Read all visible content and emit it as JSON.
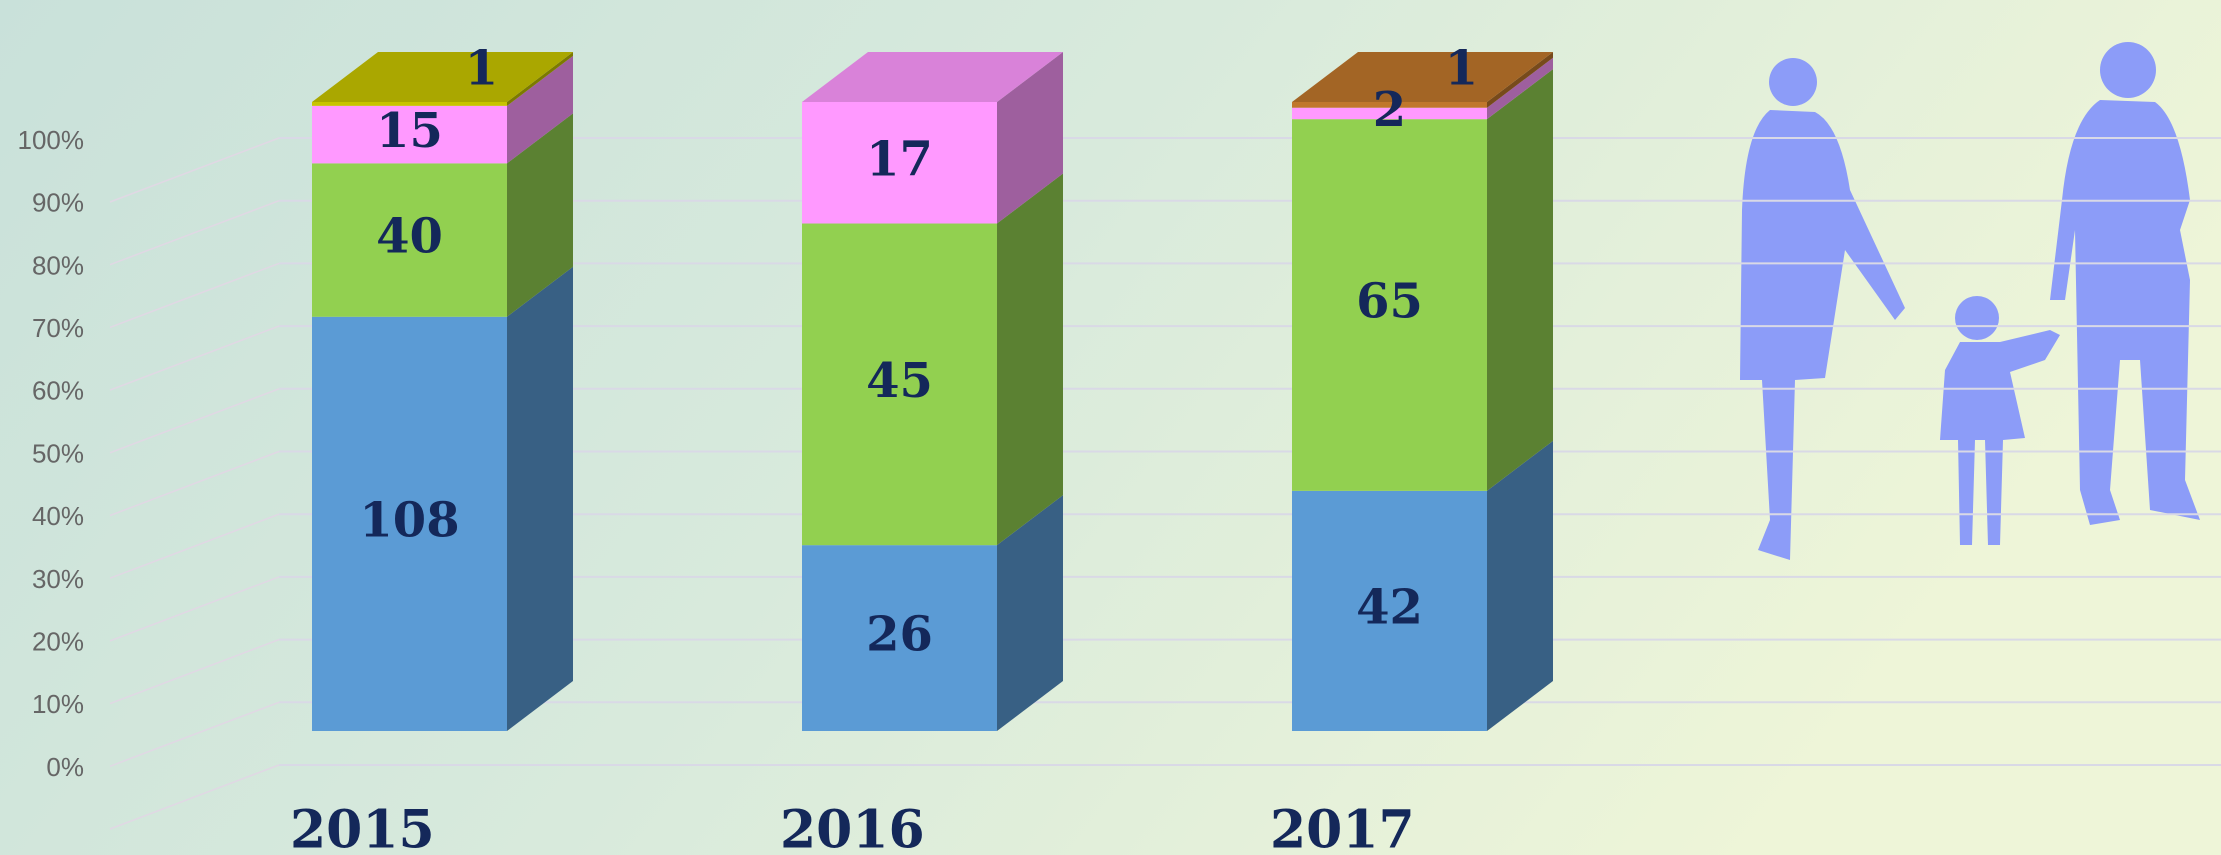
{
  "chart_data": {
    "type": "bar",
    "stacking": "percent",
    "categories": [
      "2015",
      "2016",
      "2017"
    ],
    "series": [
      {
        "color": "#5b9bd5",
        "values": [
          108,
          26,
          42
        ]
      },
      {
        "color": "#92d050",
        "values": [
          40,
          45,
          65
        ]
      },
      {
        "color": "#ff99ff",
        "values": [
          15,
          17,
          2
        ]
      },
      {
        "color": "#c8c400",
        "values": [
          1,
          null,
          null
        ]
      },
      {
        "color": "#c0772c",
        "values": [
          null,
          null,
          1
        ]
      }
    ],
    "ylim": [
      0,
      100
    ],
    "yticks": [
      {
        "value": 0,
        "label": "0%"
      },
      {
        "value": 10,
        "label": "10%"
      },
      {
        "value": 20,
        "label": "20%"
      },
      {
        "value": 30,
        "label": "30%"
      },
      {
        "value": 40,
        "label": "40%"
      },
      {
        "value": 50,
        "label": "50%"
      },
      {
        "value": 60,
        "label": "60%"
      },
      {
        "value": 70,
        "label": "70%"
      },
      {
        "value": 80,
        "label": "80%"
      },
      {
        "value": 90,
        "label": "90%"
      },
      {
        "value": 100,
        "label": "100%"
      }
    ],
    "grid": true
  }
}
